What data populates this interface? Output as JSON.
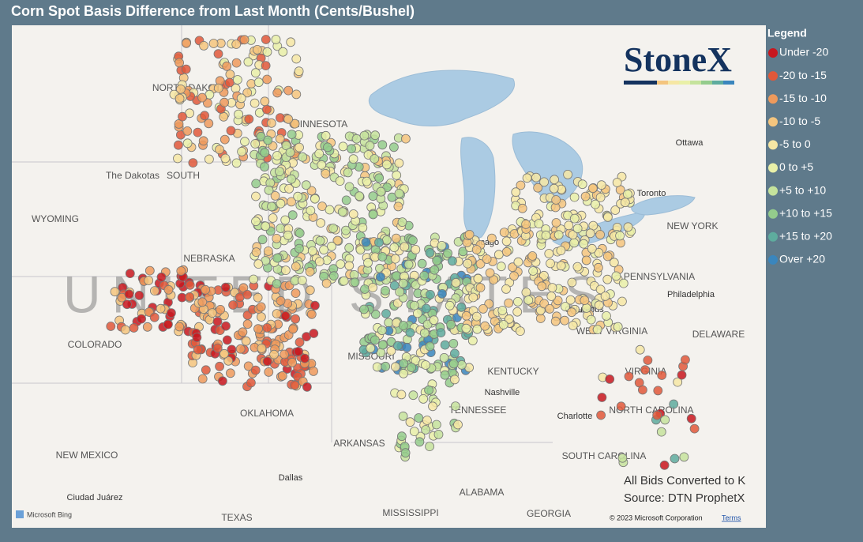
{
  "title": "Corn Spot Basis Difference from Last Month (Cents/Bushel)",
  "legend": {
    "title": "Legend",
    "items": [
      {
        "label": "Under -20",
        "color": "#c8171f"
      },
      {
        "label": "-20 to -15",
        "color": "#e0583a"
      },
      {
        "label": "-15 to -10",
        "color": "#ee9a5c"
      },
      {
        "label": "-10 to -5",
        "color": "#f4c57e"
      },
      {
        "label": "-5 to 0",
        "color": "#f6e7a4"
      },
      {
        "label": "0 to +5",
        "color": "#e9f0a8"
      },
      {
        "label": "+5 to +10",
        "color": "#c5e39c"
      },
      {
        "label": "+10 to +15",
        "color": "#94cc8c"
      },
      {
        "label": "+15 to +20",
        "color": "#5eac9e"
      },
      {
        "label": "Over +20",
        "color": "#3a86bd"
      }
    ]
  },
  "big_label": "UNITED STATES",
  "map_labels": [
    "NORTH DAKOTA",
    "MINNESOTA",
    "The Dakotas",
    "SOUTH",
    "WYOMING",
    "NEBRASKA",
    "COLORADO",
    "MISSOURI",
    "KENTUCKY",
    "WEST VIRGINIA",
    "VIRGINIA",
    "PENNSYLVANIA",
    "NEW YORK",
    "DELAWARE",
    "OKLAHOMA",
    "ARKANSAS",
    "TENNESSEE",
    "NORTH CAROLINA",
    "SOUTH CAROLINA",
    "NEW MEXICO",
    "TEXAS",
    "MISSISSIPPI",
    "ALABAMA",
    "GEORGIA",
    "Chicago",
    "Toronto",
    "Ottawa",
    "Columbus",
    "Nashville",
    "Dallas",
    "Ciudad Juárez",
    "Philadelphia",
    "Charlotte"
  ],
  "notes": [
    "All Bids Converted to K",
    "Source: DTN ProphetX"
  ],
  "logo": "StoneX",
  "attribution": {
    "provider": "Microsoft Bing",
    "copyright": "© 2023 Microsoft Corporation",
    "terms": "Terms"
  }
}
